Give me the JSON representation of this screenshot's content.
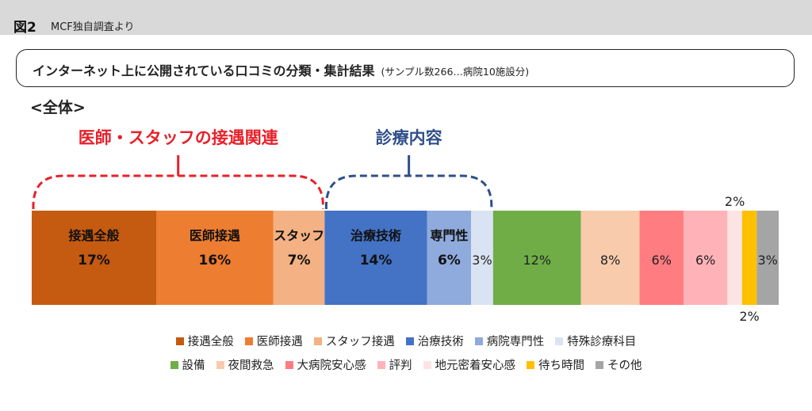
{
  "header": {
    "figure_label": "図2",
    "source": "MCF独自調査より"
  },
  "title": {
    "main": "インターネット上に公開されている口コミの分類・集計結果",
    "sub": "(サンプル数266…病院10施設分)"
  },
  "section_label": "<全体>",
  "chart_data": {
    "type": "bar",
    "orientation": "horizontal-stacked-100",
    "series": [
      {
        "name": "接遇全般",
        "value": 17,
        "label": "17%",
        "color": "#c55a11",
        "bar_text": "接遇全般",
        "bold": true,
        "text_color": "#111111",
        "label_pos": "inside"
      },
      {
        "name": "医師接遇",
        "value": 16,
        "label": "16%",
        "color": "#ed7d31",
        "bar_text": "医師接遇",
        "bold": true,
        "text_color": "#111111",
        "label_pos": "inside"
      },
      {
        "name": "スタッフ接遇",
        "value": 7,
        "label": "7%",
        "color": "#f4b183",
        "bar_text": "スタッフ",
        "bold": true,
        "text_color": "#111111",
        "label_pos": "inside"
      },
      {
        "name": "治療技術",
        "value": 14,
        "label": "14%",
        "color": "#4472c4",
        "bar_text": "治療技術",
        "bold": true,
        "text_color": "#111111",
        "label_pos": "inside"
      },
      {
        "name": "病院専門性",
        "value": 6,
        "label": "6%",
        "color": "#8faadc",
        "bar_text": "専門性",
        "bold": true,
        "text_color": "#111111",
        "label_pos": "inside"
      },
      {
        "name": "特殊診療科目",
        "value": 3,
        "label": "3%",
        "color": "#dae3f3",
        "bar_text": "",
        "bold": false,
        "text_color": "#222222",
        "label_pos": "inside"
      },
      {
        "name": "設備",
        "value": 12,
        "label": "12%",
        "color": "#70ad47",
        "bar_text": "",
        "bold": false,
        "text_color": "#222222",
        "label_pos": "inside"
      },
      {
        "name": "夜間救急",
        "value": 8,
        "label": "8%",
        "color": "#f8cbad",
        "bar_text": "",
        "bold": false,
        "text_color": "#222222",
        "label_pos": "inside"
      },
      {
        "name": "大病院安心感",
        "value": 6,
        "label": "6%",
        "color": "#ff7c80",
        "bar_text": "",
        "bold": false,
        "text_color": "#222222",
        "label_pos": "inside"
      },
      {
        "name": "評判",
        "value": 6,
        "label": "6%",
        "color": "#ffb3b8",
        "bar_text": "",
        "bold": false,
        "text_color": "#222222",
        "label_pos": "inside"
      },
      {
        "name": "地元密着安心感",
        "value": 2,
        "label": "2%",
        "color": "#fde4e4",
        "bar_text": "",
        "bold": false,
        "text_color": "#222222",
        "label_pos": "above"
      },
      {
        "name": "待ち時間",
        "value": 2,
        "label": "2%",
        "color": "#ffc000",
        "bar_text": "",
        "bold": false,
        "text_color": "#222222",
        "label_pos": "below"
      },
      {
        "name": "その他",
        "value": 3,
        "label": "3%",
        "color": "#a5a5a5",
        "bar_text": "",
        "bold": false,
        "text_color": "#222222",
        "label_pos": "inside"
      }
    ],
    "groups": [
      {
        "label": "医師・スタッフの接遇関連",
        "color": "#e8202a",
        "from": 0,
        "to": 2
      },
      {
        "label": "診療内容",
        "color": "#2f4f8a",
        "from": 3,
        "to": 5
      }
    ],
    "legend": {
      "placement": "bottom",
      "rows": [
        [
          "接遇全般",
          "医師接遇",
          "スタッフ接遇",
          "治療技術",
          "病院専門性",
          "特殊診療科目"
        ],
        [
          "設備",
          "夜間救急",
          "大病院安心感",
          "評判",
          "地元密着安心感",
          "待ち時間",
          "その他"
        ]
      ]
    }
  }
}
